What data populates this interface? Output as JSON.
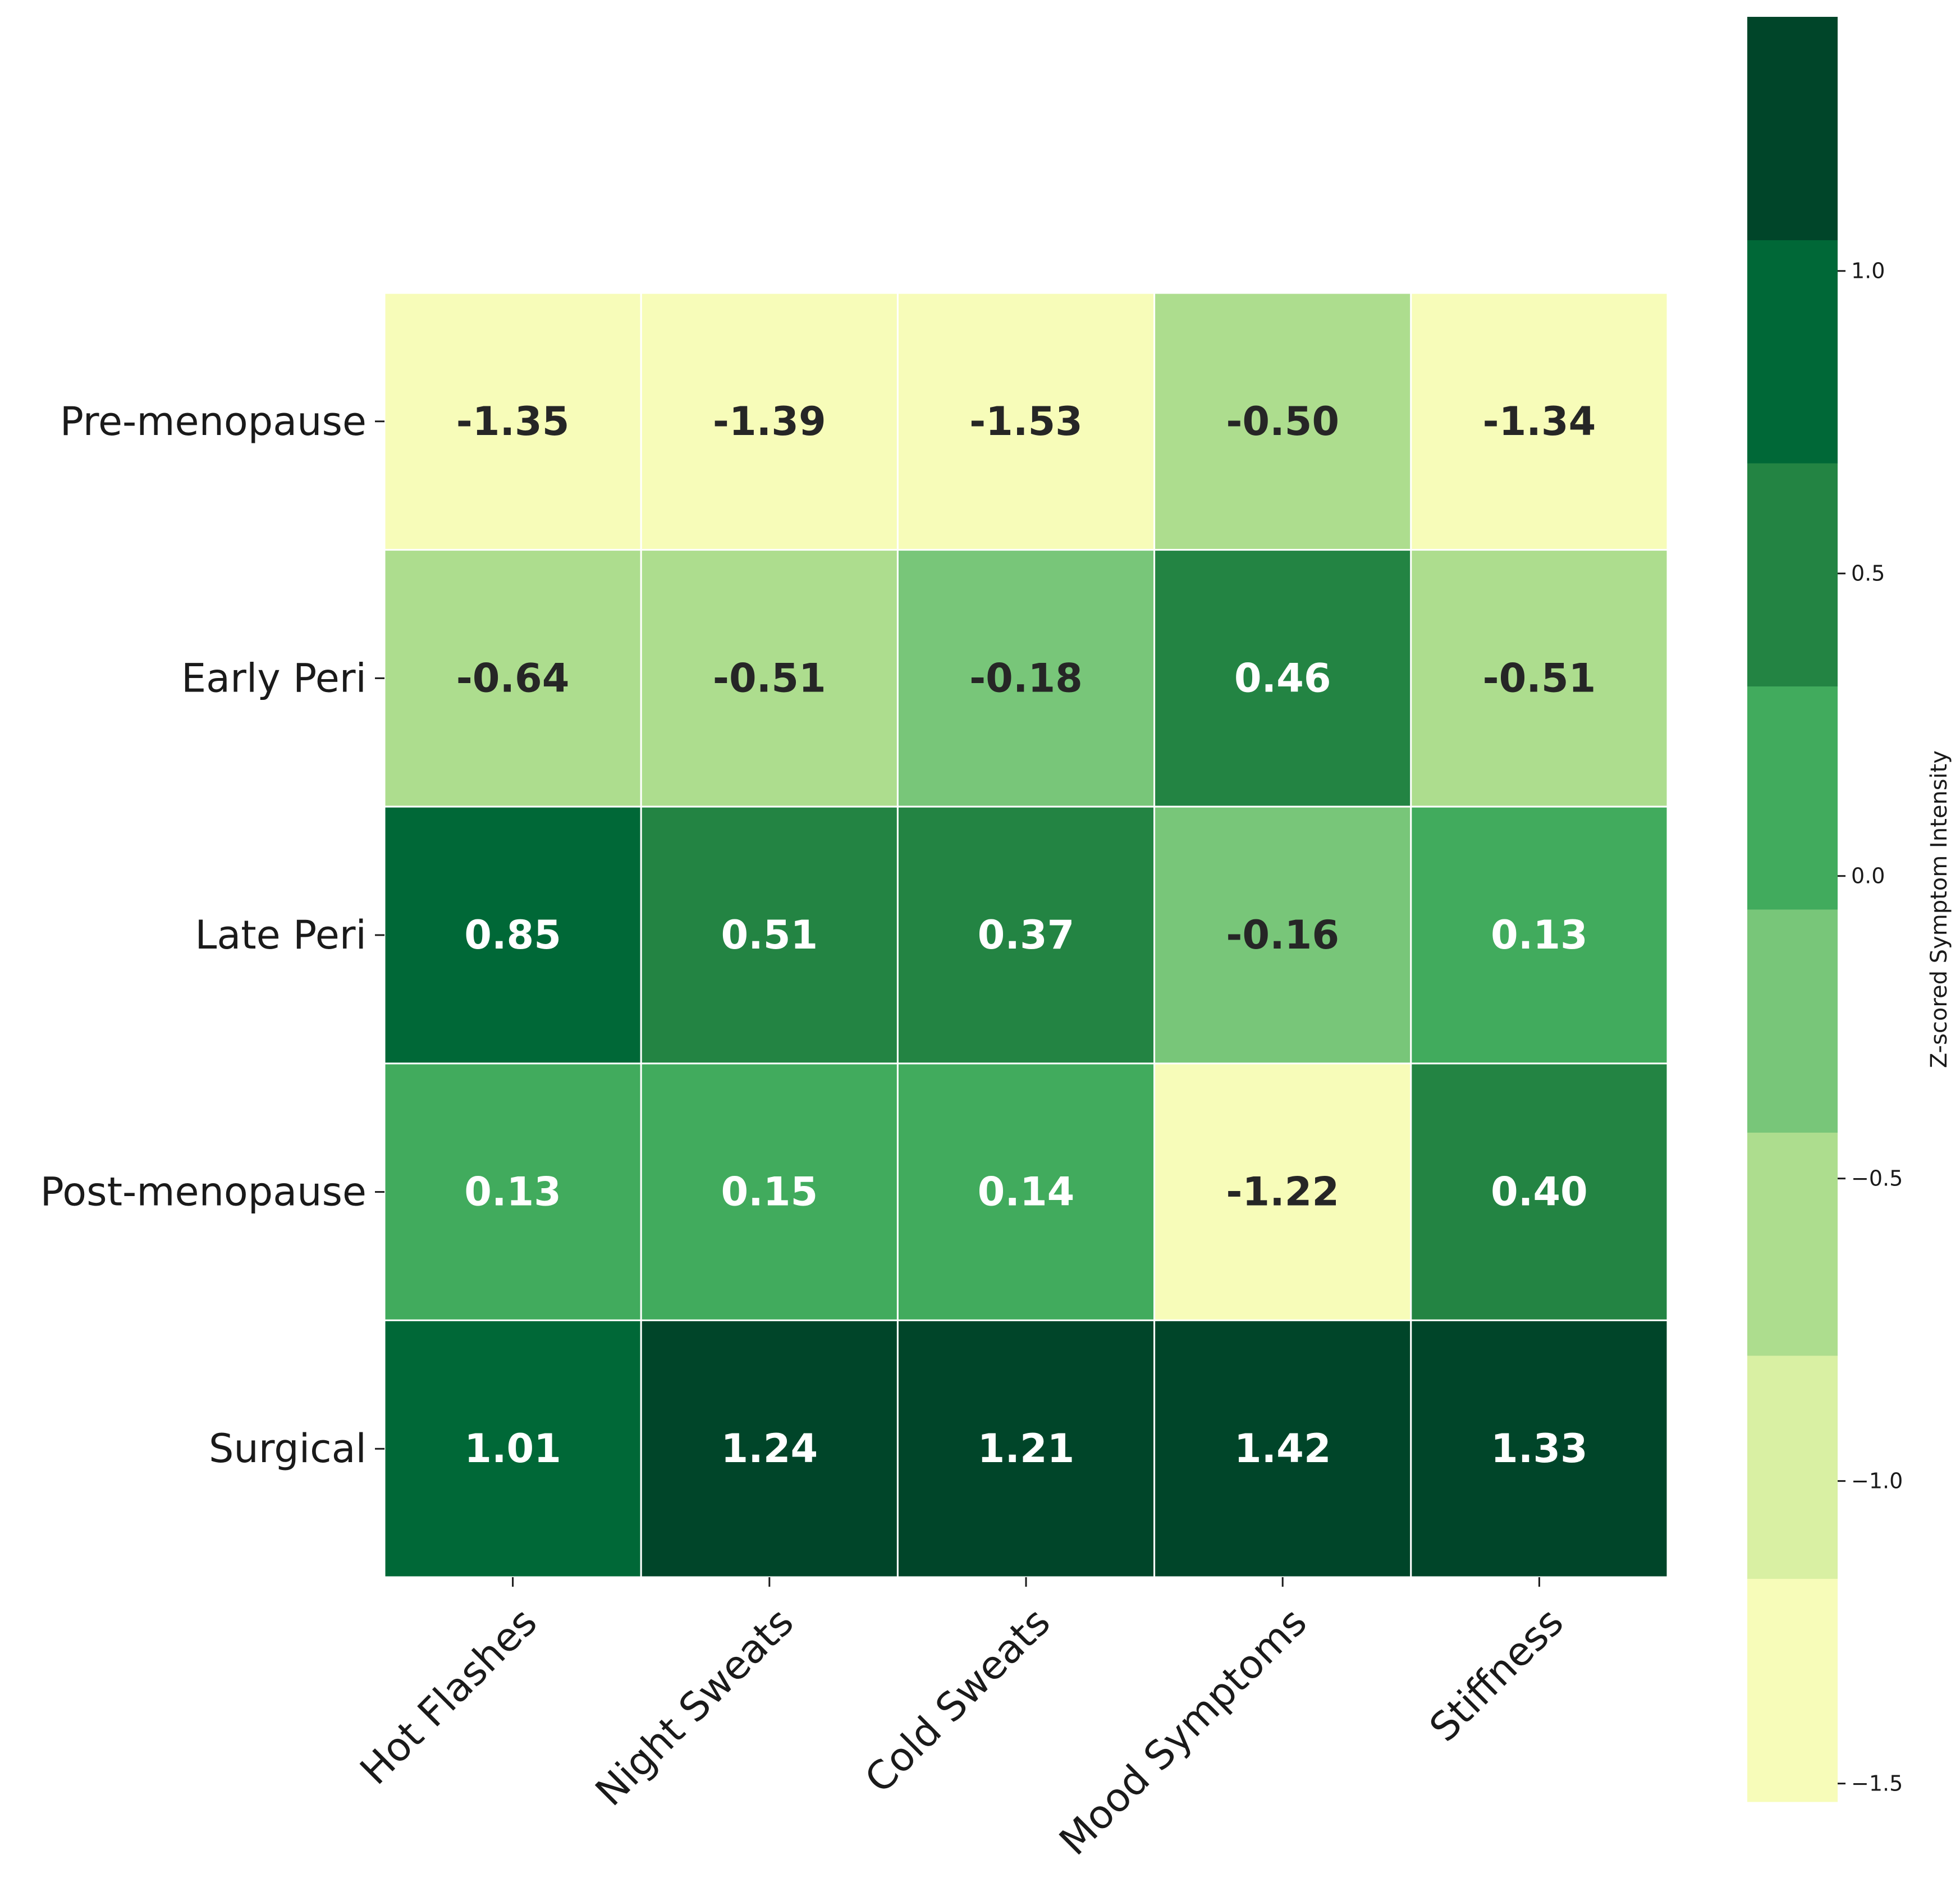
{
  "chart_data": {
    "type": "heatmap",
    "title": "",
    "rows": [
      "Pre-menopause",
      "Early Peri",
      "Late Peri",
      "Post-menopause",
      "Surgical"
    ],
    "columns": [
      "Hot Flashes",
      "Night Sweats",
      "Cold Sweats",
      "Mood Symptoms",
      "Stiffness"
    ],
    "values": [
      [
        -1.35,
        -1.39,
        -1.53,
        -0.5,
        -1.34
      ],
      [
        -0.64,
        -0.51,
        -0.18,
        0.46,
        -0.51
      ],
      [
        0.85,
        0.51,
        0.37,
        -0.16,
        0.13
      ],
      [
        0.13,
        0.15,
        0.14,
        -1.22,
        0.4
      ],
      [
        1.01,
        1.24,
        1.21,
        1.42,
        1.33
      ]
    ],
    "value_labels": [
      [
        "-1.35",
        "-1.39",
        "-1.53",
        "-0.50",
        "-1.34"
      ],
      [
        "-0.64",
        "-0.51",
        "-0.18",
        "0.46",
        "-0.51"
      ],
      [
        "0.85",
        "0.51",
        "0.37",
        "-0.16",
        "0.13"
      ],
      [
        "0.13",
        "0.15",
        "0.14",
        "-1.22",
        "0.40"
      ],
      [
        "1.01",
        "1.24",
        "1.21",
        "1.42",
        "1.33"
      ]
    ],
    "colorbar": {
      "label": "Z-scored Symptom Intensity",
      "vmin": -1.53,
      "vmax": 1.42,
      "levels": 8,
      "ticks": [
        1.0,
        0.5,
        0.0,
        -0.5,
        -1.0,
        -1.5
      ],
      "tick_labels": [
        "1.0",
        "0.5",
        "0.0",
        "−0.5",
        "−1.0",
        "−1.5"
      ],
      "colors": [
        "#f7fcb9",
        "#d9f0a3",
        "#addd8e",
        "#78c679",
        "#41ab5d",
        "#238443",
        "#006837",
        "#004529"
      ]
    },
    "text_colors": {
      "dark": "#262626",
      "light": "#ffffff"
    }
  }
}
